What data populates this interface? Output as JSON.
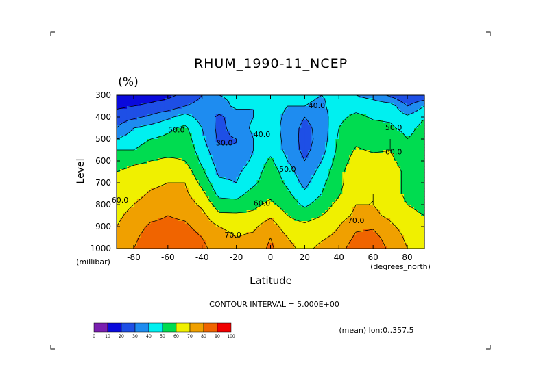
{
  "chart_data": {
    "type": "heatmap",
    "title": "RHUM_1990-11_NCEP",
    "units_label": "(%)",
    "xlabel": "Latitude",
    "x_unit_label": "(degrees_north)",
    "ylabel": "Level",
    "y_unit_label": "(millibar)",
    "x_ticks": [
      "-80",
      "-60",
      "-40",
      "-20",
      "0",
      "20",
      "40",
      "60",
      "80"
    ],
    "x_tick_values": [
      -80,
      -60,
      -40,
      -20,
      0,
      20,
      40,
      60,
      80
    ],
    "y_ticks": [
      "300",
      "400",
      "500",
      "600",
      "700",
      "800",
      "900",
      "1000"
    ],
    "y_tick_values": [
      300,
      400,
      500,
      600,
      700,
      800,
      900,
      1000
    ],
    "xlim": [
      -90,
      90
    ],
    "ylim": [
      1000,
      300
    ],
    "y_inverted": true,
    "contour_interval_text": "CONTOUR INTERVAL = 5.000E+00",
    "averaging_text": "(mean) lon:0..357.5",
    "colorbar": {
      "ticks": [
        "0",
        "10",
        "20",
        "30",
        "40",
        "50",
        "60",
        "70",
        "80",
        "90",
        "100"
      ],
      "colors": [
        "#7a1fb0",
        "#0a0adc",
        "#1e4fe6",
        "#1e8cf0",
        "#00f0f0",
        "#00dc50",
        "#f0f000",
        "#f0a000",
        "#f06400",
        "#f00000"
      ]
    },
    "contour_labels": [
      {
        "text": "30.0",
        "lat": -27,
        "lev": 530
      },
      {
        "text": "40.0",
        "lat": 27,
        "lev": 360
      },
      {
        "text": "40.0",
        "lat": -5,
        "lev": 490
      },
      {
        "text": "50.0",
        "lat": -55,
        "lev": 470
      },
      {
        "text": "50.0",
        "lat": 10,
        "lev": 650
      },
      {
        "text": "50.0",
        "lat": 72,
        "lev": 460
      },
      {
        "text": "60.0",
        "lat": 72,
        "lev": 570
      },
      {
        "text": "60.0",
        "lat": -88,
        "lev": 790
      },
      {
        "text": "60.0",
        "lat": -5,
        "lev": 805
      },
      {
        "text": "70.0",
        "lat": -22,
        "lev": 950
      },
      {
        "text": "70.0",
        "lat": 50,
        "lev": 885
      }
    ],
    "x": [
      -90,
      -80,
      -70,
      -60,
      -50,
      -40,
      -30,
      -20,
      -10,
      0,
      10,
      20,
      30,
      40,
      50,
      60,
      70,
      80,
      90
    ],
    "y": [
      300,
      350,
      400,
      450,
      500,
      550,
      600,
      650,
      700,
      750,
      800,
      850,
      900,
      950,
      1000
    ],
    "z": [
      [
        12,
        14,
        16,
        18,
        22,
        30,
        40,
        42,
        42,
        42,
        42,
        42,
        40,
        42,
        40,
        36,
        28,
        20,
        22
      ],
      [
        18,
        20,
        22,
        24,
        30,
        34,
        36,
        42,
        40,
        43,
        40,
        40,
        38,
        46,
        47,
        46,
        45,
        30,
        40
      ],
      [
        25,
        28,
        32,
        38,
        44,
        36,
        28,
        35,
        40,
        44,
        38,
        30,
        35,
        48,
        52,
        49,
        48,
        42,
        49
      ],
      [
        30,
        40,
        44,
        48,
        52,
        40,
        27,
        34,
        42,
        45,
        36,
        27,
        34,
        50,
        56,
        53,
        52,
        46,
        54
      ],
      [
        40,
        45,
        50,
        52,
        55,
        42,
        28,
        30,
        40,
        45,
        37,
        26,
        34,
        52,
        58,
        55,
        60,
        50,
        55
      ],
      [
        50,
        50,
        55,
        56,
        57,
        45,
        32,
        30,
        40,
        47,
        37,
        27,
        36,
        53,
        61,
        59,
        60,
        52,
        55
      ],
      [
        55,
        58,
        60,
        62,
        60,
        48,
        35,
        34,
        42,
        52,
        40,
        30,
        40,
        55,
        64,
        63,
        62,
        56,
        57
      ],
      [
        60,
        63,
        64,
        67,
        66,
        52,
        38,
        38,
        45,
        55,
        45,
        33,
        44,
        57,
        67,
        67,
        64,
        58,
        58
      ],
      [
        62,
        65,
        68,
        70,
        70,
        57,
        42,
        40,
        48,
        56,
        48,
        37,
        48,
        57,
        68,
        68,
        64,
        58,
        58
      ],
      [
        64,
        67,
        71,
        73,
        72,
        63,
        47,
        46,
        54,
        58,
        52,
        42,
        50,
        59,
        69,
        70,
        64,
        58,
        58
      ],
      [
        66,
        70,
        74,
        76,
        75,
        68,
        55,
        54,
        58,
        62,
        56,
        48,
        55,
        63,
        70,
        70,
        66,
        60,
        58
      ],
      [
        68,
        73,
        77,
        80,
        78,
        73,
        62,
        62,
        62,
        68,
        60,
        56,
        60,
        66,
        72,
        72,
        68,
        62,
        60
      ],
      [
        70,
        75,
        82,
        83,
        82,
        76,
        70,
        67,
        68,
        76,
        64,
        62,
        65,
        70,
        78,
        79,
        72,
        66,
        62
      ],
      [
        72,
        78,
        85,
        86,
        85,
        80,
        74,
        70,
        72,
        80,
        70,
        66,
        69,
        72,
        82,
        83,
        76,
        68,
        66
      ],
      [
        74,
        80,
        86,
        87,
        86,
        82,
        76,
        72,
        74,
        82,
        72,
        68,
        72,
        76,
        86,
        86,
        78,
        70,
        68
      ]
    ]
  }
}
